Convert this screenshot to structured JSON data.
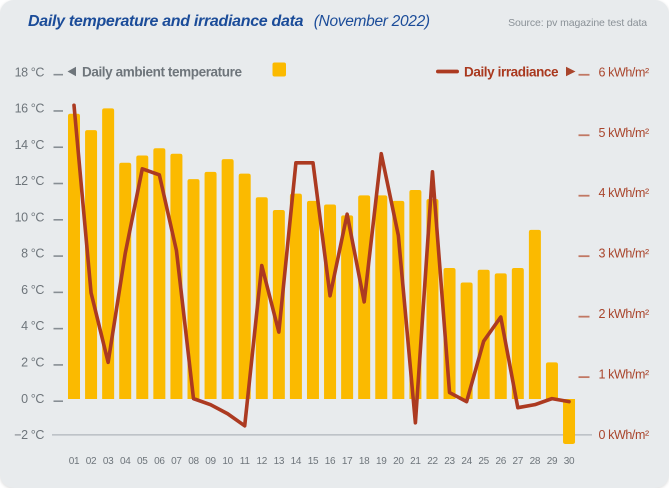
{
  "chart_data": {
    "type": "bar+line",
    "title": "Daily temperature and irradiance data",
    "subtitle": "(November 2022)",
    "source": "Source: pv magazine test data",
    "categories": [
      "01",
      "02",
      "03",
      "04",
      "05",
      "06",
      "07",
      "08",
      "09",
      "10",
      "11",
      "12",
      "13",
      "14",
      "15",
      "16",
      "17",
      "18",
      "19",
      "20",
      "21",
      "22",
      "23",
      "24",
      "25",
      "26",
      "27",
      "28",
      "29",
      "30"
    ],
    "series": [
      {
        "name": "Daily ambient temperature",
        "type": "bar",
        "axis": "left",
        "unit": "°C",
        "color": "#FBBA00",
        "values": [
          15.7,
          14.8,
          16.0,
          13.0,
          13.4,
          13.8,
          13.5,
          12.1,
          12.5,
          13.2,
          12.4,
          11.1,
          10.4,
          11.3,
          10.9,
          10.7,
          10.1,
          11.2,
          11.2,
          10.9,
          11.5,
          11.0,
          7.2,
          6.4,
          7.1,
          6.9,
          7.2,
          9.3,
          2.0,
          -2.5
        ]
      },
      {
        "name": "Daily irradiance",
        "type": "line",
        "axis": "right",
        "unit": "kWh/m²",
        "color": "#AC3A21",
        "values": [
          5.45,
          2.35,
          1.2,
          3.0,
          4.4,
          4.3,
          3.05,
          0.6,
          0.5,
          0.35,
          0.15,
          2.8,
          1.7,
          4.5,
          4.5,
          2.3,
          3.65,
          2.2,
          4.65,
          3.3,
          0.2,
          4.35,
          0.7,
          0.55,
          1.55,
          1.95,
          0.45,
          0.5,
          0.6,
          0.55
        ]
      }
    ],
    "left_axis": {
      "min": -2,
      "max": 18,
      "step": 2,
      "tick_labels": [
        "18 °C",
        "16 °C",
        "14 °C",
        "12 °C",
        "10 °C",
        "8 °C",
        "6 °C",
        "4 °C",
        "2 °C",
        "0 °C",
        "−2 °C"
      ]
    },
    "right_axis": {
      "min": 0,
      "max": 6,
      "step": 1,
      "tick_labels": [
        "6 kWh/m²",
        "5 kWh/m²",
        "4 kWh/m²",
        "3 kWh/m²",
        "2 kWh/m²",
        "1 kWh/m²",
        "0 kWh/m²"
      ]
    },
    "legend_position": "top",
    "grid": "single baseline at −2 °C / 0 kWh/m²",
    "colors": {
      "background": "#E8EBED",
      "bar": "#FBBA00",
      "line": "#AC3A21",
      "axis_text_gray": "#6E757B",
      "axis_text_red": "#A9452C",
      "tick_dash_gray": "#878E94",
      "tick_dash_red": "#C17864",
      "baseline": "#AFB6BC",
      "title_blue": "#1B4C99",
      "source_gray": "#8A9197"
    }
  }
}
